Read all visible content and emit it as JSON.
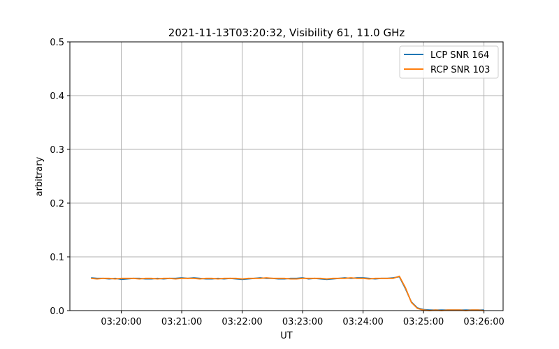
{
  "chart_data": {
    "type": "line",
    "title": "2021-11-13T03:20:32, Visibility 61, 11.0 GHz",
    "xlabel": "UT",
    "ylabel": "arbitrary",
    "ylim": [
      0,
      0.5
    ],
    "xlim": [
      "03:19:09",
      "03:26:19"
    ],
    "grid": true,
    "legend_position": "top-right",
    "x_ticks": [
      "03:20:00",
      "03:21:00",
      "03:22:00",
      "03:23:00",
      "03:24:00",
      "03:25:00",
      "03:26:00"
    ],
    "y_ticks": [
      "0.0",
      "0.1",
      "0.2",
      "0.3",
      "0.4",
      "0.5"
    ],
    "x_start": "03:19:30",
    "x_step_seconds": 6,
    "series": [
      {
        "name": "LCP SNR 164",
        "color": "#1f77b4",
        "values": [
          0.061,
          0.06,
          0.06,
          0.059,
          0.06,
          0.058,
          0.059,
          0.06,
          0.06,
          0.059,
          0.059,
          0.06,
          0.059,
          0.06,
          0.06,
          0.061,
          0.06,
          0.061,
          0.06,
          0.059,
          0.059,
          0.06,
          0.059,
          0.06,
          0.059,
          0.058,
          0.059,
          0.06,
          0.061,
          0.06,
          0.06,
          0.059,
          0.059,
          0.06,
          0.06,
          0.061,
          0.059,
          0.06,
          0.059,
          0.058,
          0.059,
          0.06,
          0.061,
          0.06,
          0.061,
          0.061,
          0.06,
          0.059,
          0.06,
          0.06,
          0.061,
          0.063,
          0.041,
          0.016,
          0.005,
          0.002,
          0.001,
          0.001,
          0.001,
          0.001,
          0.001,
          0.001,
          0.001,
          0.001,
          0.001,
          0.001
        ]
      },
      {
        "name": "RCP SNR 103",
        "color": "#ff7f0e",
        "values": [
          0.06,
          0.059,
          0.06,
          0.06,
          0.059,
          0.06,
          0.06,
          0.06,
          0.059,
          0.06,
          0.06,
          0.059,
          0.06,
          0.06,
          0.059,
          0.06,
          0.06,
          0.06,
          0.059,
          0.06,
          0.06,
          0.059,
          0.06,
          0.06,
          0.06,
          0.059,
          0.06,
          0.06,
          0.06,
          0.061,
          0.06,
          0.06,
          0.06,
          0.059,
          0.059,
          0.06,
          0.06,
          0.06,
          0.06,
          0.059,
          0.06,
          0.06,
          0.06,
          0.061,
          0.06,
          0.06,
          0.059,
          0.06,
          0.06,
          0.06,
          0.06,
          0.064,
          0.043,
          0.015,
          0.004,
          0.001,
          0.0,
          0.001,
          0.0,
          0.001,
          0.001,
          0.001,
          0.0,
          0.001,
          0.001,
          0.0
        ]
      }
    ]
  }
}
